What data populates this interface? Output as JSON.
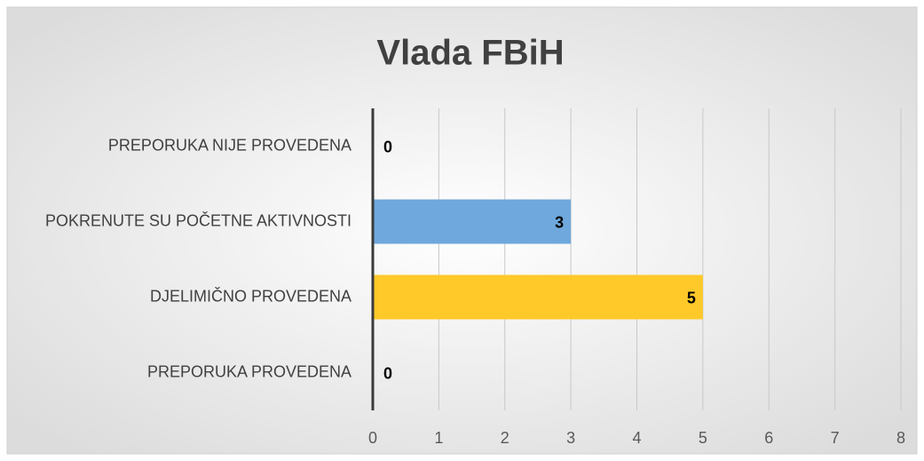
{
  "chart_data": {
    "type": "bar",
    "orientation": "horizontal",
    "title": "Vlada FBiH",
    "categories": [
      "PREPORUKA NIJE PROVEDENA",
      "POKRENUTE SU POČETNE AKTIVNOSTI",
      "DJELIMIČNO PROVEDENA",
      "PREPORUKA PROVEDENA"
    ],
    "values": [
      0,
      3,
      5,
      0
    ],
    "colors": [
      "#a5a5a5",
      "#6fa8dc",
      "#ffc92a",
      "#70ad47"
    ],
    "xlim": [
      0,
      8
    ],
    "xticks": [
      0,
      1,
      2,
      3,
      4,
      5,
      6,
      7,
      8
    ],
    "grid": true
  }
}
